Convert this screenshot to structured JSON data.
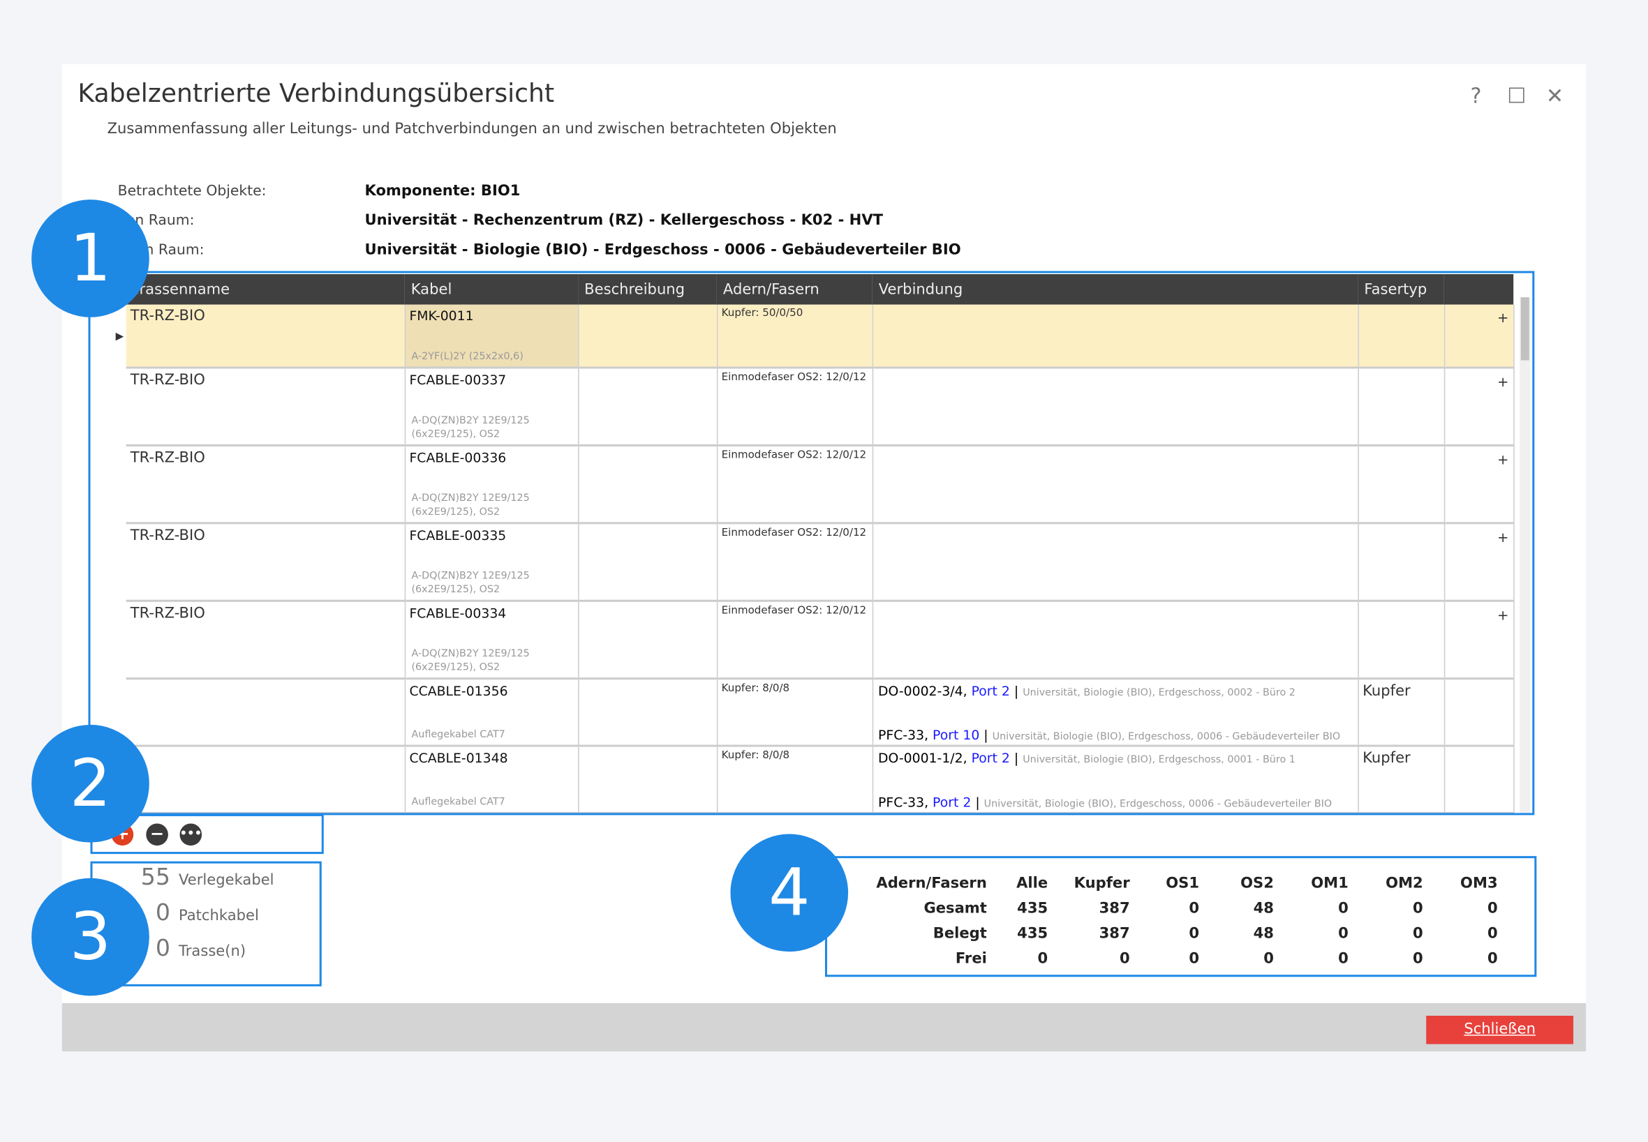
{
  "window": {
    "title": "Kabelzentrierte Verbindungsübersicht",
    "subtitle": "Zusammenfassung aller Leitungs- und Patchverbindungen an und zwischen betrachteten Objekten",
    "help": "?",
    "maximize": "☐",
    "close": "✕"
  },
  "info": [
    {
      "label": "Betrachtete Objekte:",
      "value": "Komponente: BIO1"
    },
    {
      "label": "Von Raum:",
      "value": "Universität - Rechenzentrum (RZ) - Kellergeschoss - K02 - HVT"
    },
    {
      "label": "Nach Raum:",
      "value": "Universität - Biologie (BIO) - Erdgeschoss - 0006 - Gebäudeverteiler BIO"
    }
  ],
  "grid": {
    "columns": [
      "Trassenname",
      "Kabel",
      "Beschreibung",
      "Adern/Fasern",
      "Verbindung",
      "Fasertyp"
    ],
    "rows": [
      {
        "trasse": "TR-RZ-BIO",
        "kabel": "FMK-0011",
        "typ": "A-2YF(L)2Y (25x2x0,6)",
        "adern": "Kupfer: 50/0/50",
        "fasertyp": "",
        "expand": "+"
      },
      {
        "trasse": "TR-RZ-BIO",
        "kabel": "FCABLE-00337",
        "typ": "A-DQ(ZN)B2Y 12E9/125 (6x2E9/125), OS2",
        "adern": "Einmodefaser OS2: 12/0/12",
        "fasertyp": "",
        "expand": "+"
      },
      {
        "trasse": "TR-RZ-BIO",
        "kabel": "FCABLE-00336",
        "typ": "A-DQ(ZN)B2Y 12E9/125 (6x2E9/125), OS2",
        "adern": "Einmodefaser OS2: 12/0/12",
        "fasertyp": "",
        "expand": "+"
      },
      {
        "trasse": "TR-RZ-BIO",
        "kabel": "FCABLE-00335",
        "typ": "A-DQ(ZN)B2Y 12E9/125 (6x2E9/125), OS2",
        "adern": "Einmodefaser OS2: 12/0/12",
        "fasertyp": "",
        "expand": "+"
      },
      {
        "trasse": "TR-RZ-BIO",
        "kabel": "FCABLE-00334",
        "typ": "A-DQ(ZN)B2Y 12E9/125 (6x2E9/125), OS2",
        "adern": "Einmodefaser OS2: 12/0/12",
        "fasertyp": "",
        "expand": "+"
      },
      {
        "trasse": "",
        "kabel": "CCABLE-01356",
        "typ": "Auflegekabel CAT7",
        "adern": "Kupfer: 8/0/8",
        "fasertyp": "Kupfer",
        "conn": [
          {
            "dev": "DO-0002-3/4, ",
            "port": "Port 2",
            "loc": "Universität, Biologie (BIO), Erdgeschoss, 0002 - Büro 2"
          },
          {
            "dev": "PFC-33, ",
            "port": "Port 10",
            "loc": "Universität, Biologie (BIO), Erdgeschoss, 0006 - Gebäudeverteiler BIO"
          }
        ]
      },
      {
        "trasse": "",
        "kabel": "CCABLE-01348",
        "typ": "Auflegekabel CAT7",
        "adern": "Kupfer: 8/0/8",
        "fasertyp": "Kupfer",
        "conn": [
          {
            "dev": "DO-0001-1/2, ",
            "port": "Port 2",
            "loc": "Universität, Biologie (BIO), Erdgeschoss, 0001 - Büro 1"
          },
          {
            "dev": "PFC-33, ",
            "port": "Port 2",
            "loc": "Universität, Biologie (BIO), Erdgeschoss, 0006 - Gebäudeverteiler BIO"
          }
        ]
      }
    ]
  },
  "stats": [
    {
      "count": "55",
      "label": "Verlegekabel"
    },
    {
      "count": "0",
      "label": "Patchkabel"
    },
    {
      "count": "0",
      "label": "Trasse(n)"
    }
  ],
  "summary": {
    "header": [
      "Adern/Fasern",
      "Alle",
      "Kupfer",
      "OS1",
      "OS2",
      "OM1",
      "OM2",
      "OM3"
    ],
    "rows": [
      [
        "Gesamt",
        "435",
        "387",
        "0",
        "48",
        "0",
        "0",
        "0"
      ],
      [
        "Belegt",
        "435",
        "387",
        "0",
        "48",
        "0",
        "0",
        "0"
      ],
      [
        "Frei",
        "0",
        "0",
        "0",
        "0",
        "0",
        "0",
        "0"
      ]
    ]
  },
  "callouts": [
    "1",
    "2",
    "3",
    "4"
  ],
  "footer": {
    "close_label": "Schließen"
  },
  "colors": {
    "accent": "#1e88e5",
    "close": "#e8413c",
    "selected_row": "#fdefc4",
    "header": "#404040"
  }
}
